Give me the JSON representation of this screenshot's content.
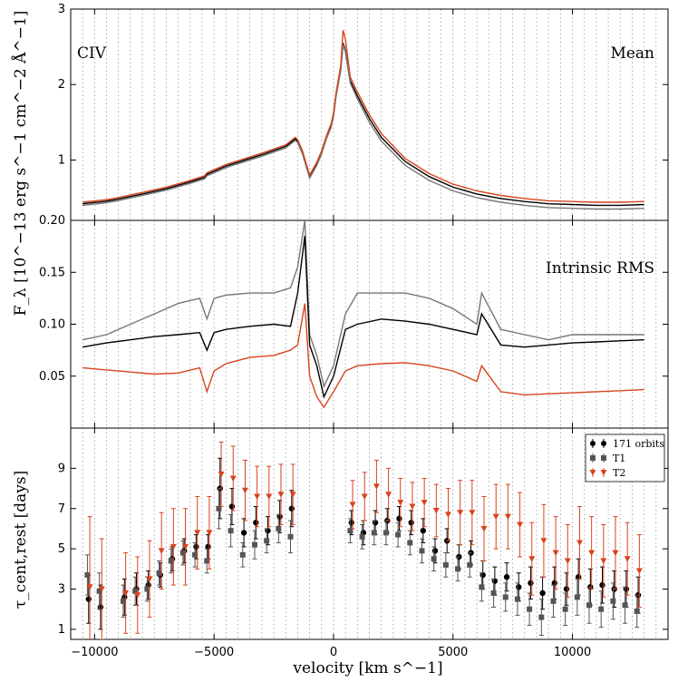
{
  "chart_data": [
    {
      "type": "line",
      "annotation_left": "CIV",
      "annotation_right": "Mean",
      "xlim": [
        -11000,
        14000
      ],
      "ylim": [
        0.2,
        3
      ],
      "yticks": [
        1,
        2,
        3
      ],
      "ytick_labels": [
        "1",
        "2",
        "3"
      ],
      "grid_x": true,
      "series": [
        {
          "color": "#000000",
          "x": [
            -10500,
            -9600,
            -9200,
            -8000,
            -7000,
            -6000,
            -5400,
            -5300,
            -5000,
            -4500,
            -4000,
            -3000,
            -2000,
            -1600,
            -1500,
            -1300,
            -1000,
            -700,
            -500,
            -300,
            -100,
            0,
            100,
            300,
            400,
            500,
            700,
            1000,
            1500,
            2000,
            3000,
            4000,
            5000,
            6000,
            7000,
            8000,
            9000,
            10000,
            11000,
            12000,
            13000
          ],
          "y": [
            0.42,
            0.45,
            0.47,
            0.55,
            0.62,
            0.71,
            0.77,
            0.81,
            0.85,
            0.92,
            0.97,
            1.07,
            1.18,
            1.28,
            1.25,
            1.1,
            0.78,
            0.95,
            1.1,
            1.3,
            1.45,
            1.6,
            1.85,
            2.2,
            2.55,
            2.45,
            2.05,
            1.85,
            1.55,
            1.3,
            0.98,
            0.78,
            0.64,
            0.55,
            0.49,
            0.45,
            0.42,
            0.41,
            0.4,
            0.4,
            0.41
          ]
        },
        {
          "color": "#777777",
          "x": [
            -10500,
            -9600,
            -9200,
            -8000,
            -7000,
            -6000,
            -5400,
            -5300,
            -5000,
            -4500,
            -4000,
            -3000,
            -2000,
            -1600,
            -1500,
            -1300,
            -1000,
            -700,
            -500,
            -300,
            -100,
            0,
            100,
            300,
            400,
            500,
            700,
            1000,
            1500,
            2000,
            3000,
            4000,
            5000,
            6000,
            7000,
            8000,
            9000,
            10000,
            11000,
            12000,
            13000
          ],
          "y": [
            0.4,
            0.43,
            0.45,
            0.53,
            0.6,
            0.69,
            0.75,
            0.79,
            0.83,
            0.9,
            0.95,
            1.05,
            1.16,
            1.26,
            1.23,
            1.08,
            0.76,
            0.93,
            1.08,
            1.28,
            1.43,
            1.58,
            1.83,
            2.18,
            2.53,
            2.43,
            2.02,
            1.81,
            1.5,
            1.25,
            0.93,
            0.73,
            0.59,
            0.5,
            0.44,
            0.4,
            0.37,
            0.36,
            0.35,
            0.35,
            0.36
          ]
        },
        {
          "color": "#D8431E",
          "x": [
            -10500,
            -9600,
            -9200,
            -8000,
            -7000,
            -6000,
            -5400,
            -5300,
            -5000,
            -4500,
            -4000,
            -3000,
            -2000,
            -1600,
            -1500,
            -1300,
            -1000,
            -700,
            -500,
            -300,
            -100,
            0,
            100,
            300,
            400,
            500,
            700,
            1000,
            1500,
            2000,
            3000,
            4000,
            5000,
            6000,
            7000,
            8000,
            9000,
            10000,
            11000,
            12000,
            13000
          ],
          "y": [
            0.44,
            0.47,
            0.49,
            0.57,
            0.64,
            0.73,
            0.79,
            0.83,
            0.87,
            0.94,
            0.99,
            1.09,
            1.2,
            1.3,
            1.27,
            1.12,
            0.8,
            0.97,
            1.12,
            1.32,
            1.48,
            1.63,
            1.88,
            2.25,
            2.72,
            2.6,
            2.1,
            1.9,
            1.6,
            1.35,
            1.02,
            0.82,
            0.68,
            0.59,
            0.53,
            0.49,
            0.46,
            0.45,
            0.44,
            0.44,
            0.45
          ]
        }
      ]
    },
    {
      "type": "line",
      "annotation_right": "Intrinsic RMS",
      "xlim": [
        -11000,
        14000
      ],
      "ylim": [
        0,
        0.2
      ],
      "yticks": [
        0.05,
        0.1,
        0.15,
        0.2
      ],
      "ytick_labels": [
        "0.05",
        "0.10",
        "0.15",
        "0.20"
      ],
      "grid_x": true,
      "series": [
        {
          "color": "#777777",
          "x": [
            -10500,
            -9500,
            -8500,
            -7500,
            -6500,
            -5600,
            -5300,
            -5000,
            -4500,
            -3500,
            -2500,
            -1800,
            -1500,
            -1200,
            -1000,
            -700,
            -400,
            0,
            500,
            1000,
            2000,
            3000,
            4000,
            5000,
            6000,
            6200,
            7000,
            8000,
            9000,
            10000,
            11000,
            12000,
            13000
          ],
          "y": [
            0.085,
            0.09,
            0.1,
            0.11,
            0.12,
            0.125,
            0.105,
            0.125,
            0.128,
            0.13,
            0.13,
            0.135,
            0.155,
            0.2,
            0.09,
            0.07,
            0.04,
            0.06,
            0.11,
            0.13,
            0.13,
            0.13,
            0.125,
            0.115,
            0.1,
            0.13,
            0.095,
            0.09,
            0.085,
            0.09,
            0.09,
            0.09,
            0.09
          ]
        },
        {
          "color": "#000000",
          "x": [
            -10500,
            -9500,
            -8500,
            -7500,
            -6500,
            -5600,
            -5300,
            -5000,
            -4500,
            -3500,
            -2500,
            -1800,
            -1500,
            -1200,
            -1000,
            -700,
            -400,
            0,
            500,
            1000,
            2000,
            3000,
            4000,
            5000,
            6000,
            6200,
            7000,
            8000,
            9000,
            10000,
            11000,
            12000,
            13000
          ],
          "y": [
            0.078,
            0.082,
            0.085,
            0.088,
            0.09,
            0.092,
            0.075,
            0.092,
            0.095,
            0.098,
            0.1,
            0.098,
            0.13,
            0.185,
            0.08,
            0.06,
            0.03,
            0.05,
            0.095,
            0.1,
            0.105,
            0.103,
            0.1,
            0.095,
            0.09,
            0.11,
            0.08,
            0.078,
            0.08,
            0.082,
            0.083,
            0.084,
            0.085
          ]
        },
        {
          "color": "#D8431E",
          "x": [
            -10500,
            -9500,
            -8500,
            -7500,
            -6500,
            -5600,
            -5300,
            -5000,
            -4500,
            -3500,
            -2500,
            -1800,
            -1500,
            -1200,
            -1000,
            -700,
            -400,
            0,
            500,
            1000,
            2000,
            3000,
            4000,
            5000,
            6000,
            6200,
            7000,
            8000,
            9000,
            10000,
            11000,
            12000,
            13000
          ],
          "y": [
            0.058,
            0.056,
            0.054,
            0.052,
            0.053,
            0.058,
            0.035,
            0.055,
            0.062,
            0.068,
            0.07,
            0.075,
            0.08,
            0.12,
            0.05,
            0.03,
            0.02,
            0.035,
            0.055,
            0.06,
            0.062,
            0.063,
            0.06,
            0.055,
            0.045,
            0.06,
            0.035,
            0.032,
            0.033,
            0.034,
            0.035,
            0.036,
            0.037
          ]
        }
      ]
    },
    {
      "type": "scatter",
      "xlim": [
        -11000,
        14000
      ],
      "ylim": [
        0.5,
        11
      ],
      "yticks": [
        1,
        3,
        5,
        7,
        9
      ],
      "ytick_labels": [
        "1",
        "3",
        "5",
        "7",
        "9"
      ],
      "xticks": [
        -10000,
        -5000,
        0,
        5000,
        10000
      ],
      "xtick_labels": [
        "−10000",
        "−5000",
        "0",
        "5000",
        "10000"
      ],
      "grid_x": true,
      "legend_position": "top-right",
      "series": [
        {
          "name": "171 orbits",
          "color": "#000000",
          "marker": "circle",
          "x": [
            -10250,
            -9750,
            -8750,
            -8250,
            -7750,
            -7250,
            -6750,
            -6250,
            -5750,
            -5250,
            -4750,
            -4250,
            -3750,
            -3250,
            -2750,
            -2250,
            -1750,
            750,
            1250,
            1750,
            2250,
            2750,
            3250,
            3750,
            4250,
            4750,
            5250,
            5750,
            6250,
            6750,
            7250,
            7750,
            8250,
            8750,
            9250,
            9750,
            10250,
            10750,
            11250,
            11750,
            12250,
            12750
          ],
          "y": [
            2.5,
            2.1,
            2.6,
            3.0,
            3.2,
            3.7,
            4.5,
            4.9,
            5.1,
            5.1,
            8.0,
            7.1,
            5.8,
            6.3,
            5.9,
            6.6,
            7.0,
            6.3,
            5.8,
            6.3,
            6.4,
            6.5,
            6.3,
            5.9,
            4.9,
            5.4,
            4.6,
            4.8,
            3.7,
            3.4,
            3.6,
            3.1,
            3.3,
            2.8,
            3.3,
            3.0,
            3.6,
            3.1,
            3.2,
            3.0,
            3.0,
            2.7
          ],
          "err": [
            1.2,
            1.1,
            0.9,
            0.8,
            0.7,
            0.6,
            0.6,
            0.6,
            0.6,
            0.6,
            1.5,
            0.9,
            0.7,
            0.8,
            0.7,
            0.8,
            0.9,
            0.6,
            0.6,
            0.6,
            0.6,
            0.6,
            0.6,
            0.6,
            0.6,
            0.6,
            0.6,
            0.6,
            0.7,
            0.7,
            0.7,
            0.7,
            0.8,
            0.8,
            0.8,
            0.8,
            0.9,
            0.9,
            0.9,
            0.9,
            0.9,
            0.9
          ]
        },
        {
          "name": "T1",
          "color": "#555555",
          "marker": "square",
          "x": [
            -10300,
            -9800,
            -8800,
            -8300,
            -7800,
            -7300,
            -6800,
            -6300,
            -5800,
            -5300,
            -4800,
            -4300,
            -3800,
            -3300,
            -2800,
            -2300,
            -1800,
            700,
            1200,
            1700,
            2200,
            2700,
            3200,
            3700,
            4200,
            4700,
            5200,
            5700,
            6200,
            6700,
            7200,
            7700,
            8200,
            8700,
            9200,
            9700,
            10200,
            10700,
            11200,
            11700,
            12200,
            12700
          ],
          "y": [
            3.7,
            2.9,
            2.4,
            2.9,
            3.0,
            3.8,
            4.4,
            4.8,
            4.7,
            4.4,
            7.0,
            5.9,
            4.7,
            5.2,
            5.4,
            6.0,
            5.6,
            5.9,
            5.6,
            5.8,
            5.8,
            5.7,
            5.3,
            4.9,
            4.5,
            4.2,
            4.0,
            4.2,
            3.1,
            2.8,
            2.6,
            2.5,
            2.0,
            1.6,
            2.4,
            2.0,
            2.6,
            2.2,
            2.0,
            2.4,
            2.2,
            1.9
          ],
          "err": [
            1.0,
            0.9,
            0.8,
            0.7,
            0.6,
            0.6,
            0.6,
            0.6,
            0.6,
            0.6,
            1.0,
            0.8,
            0.6,
            0.7,
            0.6,
            0.7,
            0.8,
            0.6,
            0.6,
            0.6,
            0.6,
            0.6,
            0.6,
            0.6,
            0.6,
            0.6,
            0.6,
            0.6,
            0.7,
            0.7,
            0.7,
            0.8,
            0.8,
            0.9,
            0.8,
            0.8,
            0.9,
            0.9,
            0.9,
            0.9,
            0.9,
            0.8
          ]
        },
        {
          "name": "T2",
          "color": "#D8431E",
          "marker": "triangle-down",
          "x": [
            -10200,
            -9700,
            -8700,
            -8200,
            -7700,
            -7200,
            -6700,
            -6200,
            -5700,
            -5200,
            -4700,
            -4200,
            -3700,
            -3200,
            -2700,
            -2200,
            -1700,
            800,
            1300,
            1800,
            2300,
            2800,
            3300,
            3800,
            4300,
            4800,
            5300,
            5800,
            6300,
            6800,
            7300,
            7800,
            8300,
            8800,
            9300,
            9800,
            10300,
            10800,
            11300,
            11800,
            12300,
            12800
          ],
          "y": [
            3.1,
            3.0,
            2.8,
            2.7,
            3.5,
            4.9,
            5.1,
            5.1,
            5.8,
            5.8,
            8.7,
            8.5,
            7.9,
            7.6,
            7.6,
            7.7,
            7.7,
            7.2,
            7.6,
            8.1,
            7.7,
            7.3,
            7.1,
            7.3,
            6.9,
            6.7,
            6.8,
            6.8,
            6.0,
            6.6,
            6.6,
            6.2,
            4.5,
            5.4,
            4.8,
            4.4,
            5.3,
            4.8,
            4.4,
            4.8,
            4.5,
            3.9
          ],
          "err": [
            3.5,
            2.5,
            2.0,
            1.9,
            1.9,
            1.9,
            1.9,
            1.9,
            1.8,
            1.8,
            1.6,
            1.6,
            1.5,
            1.5,
            1.5,
            1.5,
            1.5,
            1.2,
            1.2,
            1.3,
            1.3,
            1.2,
            1.2,
            1.2,
            1.3,
            1.3,
            1.6,
            1.6,
            1.6,
            1.6,
            1.6,
            1.6,
            1.8,
            1.8,
            1.8,
            1.8,
            1.8,
            1.8,
            1.8,
            1.8,
            1.8,
            1.8
          ]
        }
      ]
    }
  ],
  "ylabel_flux": "F_λ [10^−13 erg s^−1 cm^−2 Å^−1]",
  "ylabel_lag": "τ_cent,rest [days]",
  "xlabel": "velocity [km s^−1]"
}
